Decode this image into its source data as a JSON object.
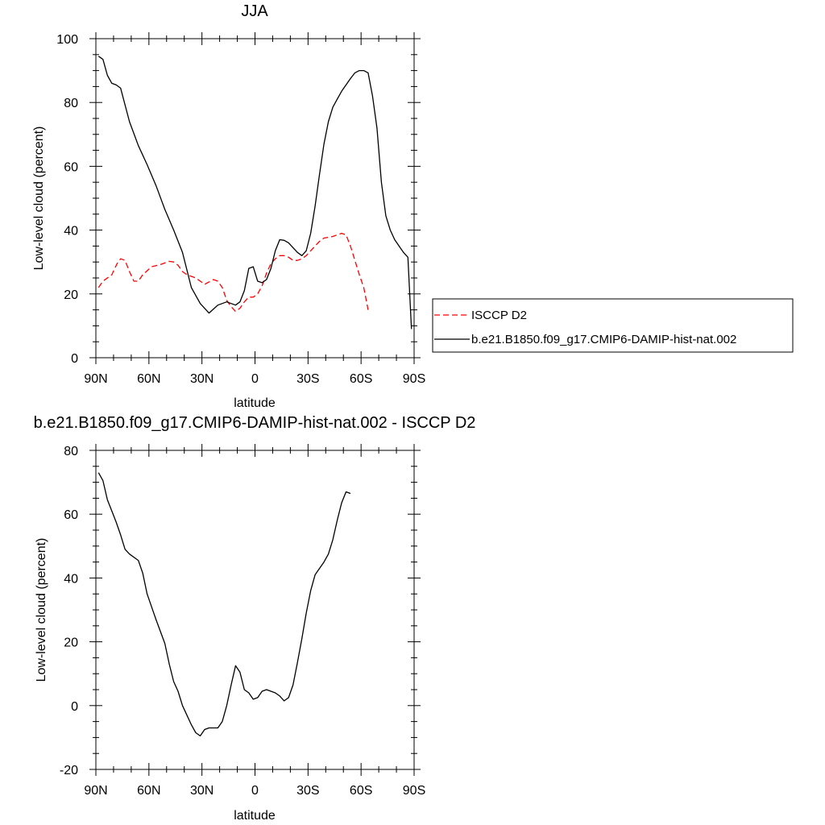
{
  "chart_data": [
    {
      "type": "line",
      "title": "JJA",
      "xlabel": "latitude",
      "ylabel": "Low-level cloud (percent)",
      "xlim": [
        90,
        -90
      ],
      "ylim": [
        0,
        100
      ],
      "x_ticks": [
        90,
        60,
        30,
        0,
        -30,
        -60,
        -90
      ],
      "x_tick_labels": [
        "90N",
        "60N",
        "30N",
        "0",
        "30S",
        "60S",
        "90S"
      ],
      "y_ticks": [
        0,
        20,
        40,
        60,
        80,
        100
      ],
      "y_tick_labels": [
        "0",
        "20",
        "40",
        "60",
        "80",
        "100"
      ],
      "legend_position": "right, outside plot",
      "series": [
        {
          "name": "ISCCP D2",
          "color": "#ff0000",
          "dash": "dashed",
          "points": [
            [
              88.5,
              22
            ],
            [
              86,
              24
            ],
            [
              81,
              26
            ],
            [
              78,
              29.5
            ],
            [
              76,
              31
            ],
            [
              73.5,
              30.5
            ],
            [
              71,
              27
            ],
            [
              68.5,
              24
            ],
            [
              66,
              24
            ],
            [
              63.5,
              26
            ],
            [
              58.5,
              28.5
            ],
            [
              53.5,
              29.2
            ],
            [
              48.5,
              30.2
            ],
            [
              46,
              30
            ],
            [
              43.5,
              29
            ],
            [
              41,
              27
            ],
            [
              38.5,
              26
            ],
            [
              33.5,
              25
            ],
            [
              28.5,
              23
            ],
            [
              23.5,
              24.5
            ],
            [
              21,
              24
            ],
            [
              18.5,
              22
            ],
            [
              16,
              18
            ],
            [
              13.5,
              16
            ],
            [
              11,
              14.5
            ],
            [
              8.5,
              15.5
            ],
            [
              6,
              17.5
            ],
            [
              3.5,
              19
            ],
            [
              1,
              19
            ],
            [
              -1.5,
              20
            ],
            [
              -4,
              22.5
            ],
            [
              -6.5,
              26.5
            ],
            [
              -9,
              29.5
            ],
            [
              -11.5,
              31
            ],
            [
              -14,
              32
            ],
            [
              -16.5,
              32
            ],
            [
              -19,
              31.5
            ],
            [
              -21.5,
              30.5
            ],
            [
              -24,
              30.5
            ],
            [
              -26.5,
              31
            ],
            [
              -29,
              32
            ],
            [
              -31.5,
              33.5
            ],
            [
              -34,
              35
            ],
            [
              -36.5,
              36.5
            ],
            [
              -39,
              37.5
            ],
            [
              -44,
              38
            ],
            [
              -46.5,
              38.5
            ],
            [
              -49,
              39
            ],
            [
              -51.5,
              38.5
            ],
            [
              -54,
              35
            ],
            [
              -56.5,
              30.5
            ],
            [
              -59,
              26
            ],
            [
              -61.5,
              22
            ],
            [
              -64,
              15
            ]
          ]
        },
        {
          "name": "b.e21.B1850.f09_g17.CMIP6-DAMIP-hist-nat.002",
          "color": "#000000",
          "dash": "solid",
          "points": [
            [
              88.5,
              94.5
            ],
            [
              86,
              93.5
            ],
            [
              83.5,
              88.5
            ],
            [
              81,
              86
            ],
            [
              78.5,
              85.5
            ],
            [
              76,
              84.5
            ],
            [
              71,
              74
            ],
            [
              66,
              66.5
            ],
            [
              61,
              60.5
            ],
            [
              56,
              54
            ],
            [
              51,
              46.5
            ],
            [
              46,
              40
            ],
            [
              41,
              33
            ],
            [
              36,
              22
            ],
            [
              31,
              17
            ],
            [
              26,
              14
            ],
            [
              21,
              16.5
            ],
            [
              16,
              17.5
            ],
            [
              13.5,
              17
            ],
            [
              11,
              16.5
            ],
            [
              8.5,
              17.5
            ],
            [
              6,
              21
            ],
            [
              3.5,
              28
            ],
            [
              1,
              28.5
            ],
            [
              -1.5,
              24
            ],
            [
              -4,
              23.5
            ],
            [
              -6.5,
              24.5
            ],
            [
              -9,
              28
            ],
            [
              -11.5,
              33.5
            ],
            [
              -14,
              37
            ],
            [
              -16.5,
              36.8
            ],
            [
              -19,
              36
            ],
            [
              -21.5,
              34.5
            ],
            [
              -24,
              33
            ],
            [
              -26.5,
              32
            ],
            [
              -29,
              33.5
            ],
            [
              -31.5,
              39
            ],
            [
              -34,
              47.5
            ],
            [
              -36.5,
              57.5
            ],
            [
              -39,
              67
            ],
            [
              -41.5,
              74
            ],
            [
              -44,
              78.5
            ],
            [
              -46.5,
              81
            ],
            [
              -49,
              83.5
            ],
            [
              -51.5,
              85.5
            ],
            [
              -54,
              87.5
            ],
            [
              -56.5,
              89.3
            ],
            [
              -59,
              90
            ],
            [
              -61.5,
              90
            ],
            [
              -64,
              89.3
            ],
            [
              -66.5,
              82
            ],
            [
              -69,
              72
            ],
            [
              -71.5,
              55
            ],
            [
              -74,
              44.5
            ],
            [
              -76.5,
              40
            ],
            [
              -79,
              37
            ],
            [
              -81.5,
              35
            ],
            [
              -84,
              33
            ],
            [
              -86.5,
              31.5
            ],
            [
              -88.5,
              9
            ]
          ]
        }
      ]
    },
    {
      "type": "line",
      "title": "b.e21.B1850.f09_g17.CMIP6-DAMIP-hist-nat.002 - ISCCP D2",
      "xlabel": "latitude",
      "ylabel": "Low-level cloud (percent)",
      "xlim": [
        90,
        -90
      ],
      "ylim": [
        -20,
        80
      ],
      "x_ticks": [
        90,
        60,
        30,
        0,
        -30,
        -60,
        -90
      ],
      "x_tick_labels": [
        "90N",
        "60N",
        "30N",
        "0",
        "30S",
        "60S",
        "90S"
      ],
      "y_ticks": [
        -20,
        0,
        20,
        40,
        60,
        80
      ],
      "y_tick_labels": [
        "-20",
        "0",
        "20",
        "40",
        "60",
        "80"
      ],
      "series": [
        {
          "color": "#000000",
          "dash": "solid",
          "points": [
            [
              88.5,
              73
            ],
            [
              86,
              70.5
            ],
            [
              83.5,
              64.5
            ],
            [
              81,
              61
            ],
            [
              78.5,
              57.5
            ],
            [
              76,
              53.5
            ],
            [
              73.5,
              49
            ],
            [
              71,
              47.5
            ],
            [
              66,
              45.5
            ],
            [
              63.5,
              41.5
            ],
            [
              61,
              35
            ],
            [
              56,
              27
            ],
            [
              51,
              19.5
            ],
            [
              48.5,
              13
            ],
            [
              46,
              7.5
            ],
            [
              43.5,
              4.5
            ],
            [
              41,
              0
            ],
            [
              38.5,
              -3
            ],
            [
              36,
              -6
            ],
            [
              33.5,
              -8.5
            ],
            [
              31,
              -9.5
            ],
            [
              28.5,
              -7.5
            ],
            [
              26,
              -7
            ],
            [
              21,
              -7
            ],
            [
              18.5,
              -5
            ],
            [
              16,
              0
            ],
            [
              13.5,
              6.5
            ],
            [
              11,
              12.5
            ],
            [
              8.5,
              10.5
            ],
            [
              6,
              5
            ],
            [
              3.5,
              4
            ],
            [
              1,
              2
            ],
            [
              -1.5,
              2.5
            ],
            [
              -4,
              4.5
            ],
            [
              -6.5,
              5
            ],
            [
              -9,
              4.5
            ],
            [
              -11.5,
              4
            ],
            [
              -14,
              3
            ],
            [
              -16.5,
              1.5
            ],
            [
              -19,
              2.5
            ],
            [
              -21.5,
              6.5
            ],
            [
              -24,
              13.5
            ],
            [
              -26.5,
              21
            ],
            [
              -29,
              29
            ],
            [
              -31.5,
              36
            ],
            [
              -34,
              41
            ],
            [
              -36.5,
              43
            ],
            [
              -39,
              45
            ],
            [
              -41.5,
              47.5
            ],
            [
              -44,
              52
            ],
            [
              -46.5,
              58
            ],
            [
              -49,
              63.5
            ],
            [
              -51.5,
              67
            ],
            [
              -54,
              66.5
            ]
          ]
        }
      ]
    }
  ]
}
